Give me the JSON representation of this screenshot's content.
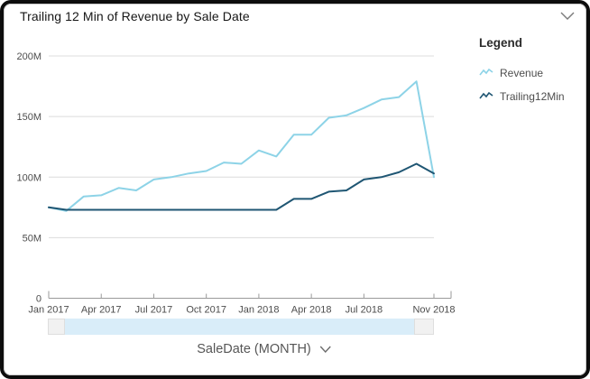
{
  "header": {
    "title": "Trailing 12 Min of Revenue by Sale Date",
    "collapse_icon": "chevron-down"
  },
  "legend": {
    "title": "Legend",
    "items": [
      {
        "label": "Revenue",
        "color": "#8dd3e7"
      },
      {
        "label": "Trailing12Min",
        "color": "#1f5673"
      }
    ]
  },
  "x_axis_control": {
    "label": "SaleDate (MONTH)",
    "icon": "chevron-down"
  },
  "colors": {
    "revenue_line": "#8dd3e7",
    "trailing_line": "#1f5673",
    "gridline": "#dcdcdc",
    "axis": "#9a9a9a",
    "tick_text": "#4d4d4d",
    "slider_track": "#d9edf9",
    "slider_handle": "#f1f1f1"
  },
  "chart_data": {
    "type": "line",
    "title": "Trailing 12 Min of Revenue by Sale Date",
    "xlabel": "SaleDate (MONTH)",
    "ylabel": "",
    "unit": "M",
    "grid": true,
    "legend_position": "right",
    "ylim": [
      0,
      200
    ],
    "x": [
      "Jan 2017",
      "Feb 2017",
      "Mar 2017",
      "Apr 2017",
      "May 2017",
      "Jun 2017",
      "Jul 2017",
      "Aug 2017",
      "Sep 2017",
      "Oct 2017",
      "Nov 2017",
      "Dec 2017",
      "Jan 2018",
      "Feb 2018",
      "Mar 2018",
      "Apr 2018",
      "May 2018",
      "Jun 2018",
      "Jul 2018",
      "Aug 2018",
      "Sep 2018",
      "Oct 2018",
      "Nov 2018"
    ],
    "series": [
      {
        "name": "Revenue",
        "color": "#8dd3e7",
        "values": [
          75,
          72,
          84,
          85,
          91,
          89,
          98,
          100,
          103,
          105,
          112,
          111,
          122,
          117,
          135,
          135,
          149,
          151,
          157,
          164,
          166,
          179,
          100
        ]
      },
      {
        "name": "Trailing12Min",
        "color": "#1f5673",
        "values": [
          75,
          73,
          73,
          73,
          73,
          73,
          73,
          73,
          73,
          73,
          73,
          73,
          73,
          73,
          82,
          82,
          88,
          89,
          98,
          100,
          104,
          111,
          103
        ]
      }
    ],
    "y_ticks": [
      {
        "v": 0,
        "label": "0"
      },
      {
        "v": 50,
        "label": "50M"
      },
      {
        "v": 100,
        "label": "100M"
      },
      {
        "v": 150,
        "label": "150M"
      },
      {
        "v": 200,
        "label": "200M"
      }
    ],
    "x_ticks": [
      {
        "i": 0,
        "label": "Jan 2017"
      },
      {
        "i": 3,
        "label": "Apr 2017"
      },
      {
        "i": 6,
        "label": "Jul 2017"
      },
      {
        "i": 9,
        "label": "Oct 2017"
      },
      {
        "i": 12,
        "label": "Jan 2018"
      },
      {
        "i": 15,
        "label": "Apr 2018"
      },
      {
        "i": 18,
        "label": "Jul 2018"
      },
      {
        "i": 22,
        "label": "Nov 2018"
      }
    ]
  }
}
